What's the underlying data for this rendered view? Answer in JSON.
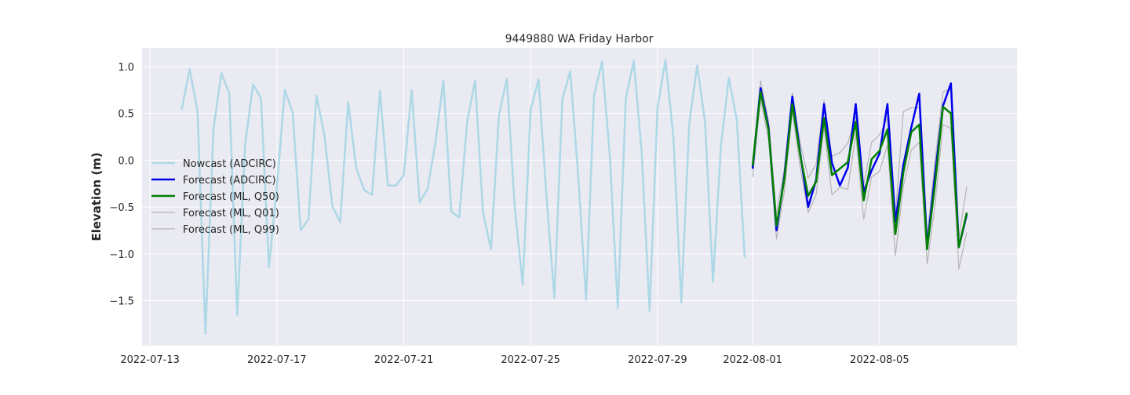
{
  "chart_data": {
    "type": "line",
    "title": "9449880 WA Friday Harbor",
    "xlabel": "",
    "ylabel": "Elevation (m)",
    "xlim": [
      "2022-07-12T18:00",
      "2022-08-09T08:00"
    ],
    "ylim": [
      -1.98,
      1.2
    ],
    "x_ticks": [
      "2022-07-13",
      "2022-07-17",
      "2022-07-21",
      "2022-07-25",
      "2022-07-29",
      "2022-08-01",
      "2022-08-05"
    ],
    "y_ticks": [
      1.0,
      0.5,
      0.0,
      -0.5,
      -1.0,
      -1.5
    ],
    "y_tick_labels": [
      "1.0",
      "0.5",
      "0.0",
      "−0.5",
      "−1.0",
      "−1.5"
    ],
    "grid": true,
    "legend_position": "center-left",
    "series": [
      {
        "name": "Nowcast (ADCIRC)",
        "color": "#add8e6",
        "points": [
          [
            "2022-07-14T00:00",
            0.54
          ],
          [
            "2022-07-14T06:00",
            0.97
          ],
          [
            "2022-07-14T12:00",
            0.53
          ],
          [
            "2022-07-14T18:00",
            -1.85
          ],
          [
            "2022-07-15T00:00",
            0.33
          ],
          [
            "2022-07-15T06:00",
            0.93
          ],
          [
            "2022-07-15T12:00",
            0.71
          ],
          [
            "2022-07-15T18:00",
            -1.65
          ],
          [
            "2022-07-16T00:00",
            0.17
          ],
          [
            "2022-07-16T06:00",
            0.81
          ],
          [
            "2022-07-16T12:00",
            0.66
          ],
          [
            "2022-07-16T18:00",
            -1.14
          ],
          [
            "2022-07-17T00:00",
            -0.3
          ],
          [
            "2022-07-17T06:00",
            0.75
          ],
          [
            "2022-07-17T12:00",
            0.51
          ],
          [
            "2022-07-17T18:00",
            -0.75
          ],
          [
            "2022-07-18T00:00",
            -0.63
          ],
          [
            "2022-07-18T06:00",
            0.69
          ],
          [
            "2022-07-18T12:00",
            0.27
          ],
          [
            "2022-07-18T18:00",
            -0.49
          ],
          [
            "2022-07-19T00:00",
            -0.66
          ],
          [
            "2022-07-19T06:00",
            0.62
          ],
          [
            "2022-07-19T12:00",
            -0.08
          ],
          [
            "2022-07-19T18:00",
            -0.32
          ],
          [
            "2022-07-20T00:00",
            -0.37
          ],
          [
            "2022-07-20T06:00",
            0.74
          ],
          [
            "2022-07-20T12:00",
            -0.27
          ],
          [
            "2022-07-20T18:00",
            -0.27
          ],
          [
            "2022-07-21T00:00",
            -0.16
          ],
          [
            "2022-07-21T06:00",
            0.75
          ],
          [
            "2022-07-21T12:00",
            -0.45
          ],
          [
            "2022-07-21T18:00",
            -0.31
          ],
          [
            "2022-07-22T00:00",
            0.19
          ],
          [
            "2022-07-22T06:00",
            0.85
          ],
          [
            "2022-07-22T12:00",
            -0.55
          ],
          [
            "2022-07-22T18:00",
            -0.61
          ],
          [
            "2022-07-23T00:00",
            0.41
          ],
          [
            "2022-07-23T06:00",
            0.85
          ],
          [
            "2022-07-23T12:00",
            -0.56
          ],
          [
            "2022-07-23T18:00",
            -0.95
          ],
          [
            "2022-07-24T00:00",
            0.48
          ],
          [
            "2022-07-24T06:00",
            0.87
          ],
          [
            "2022-07-24T12:00",
            -0.51
          ],
          [
            "2022-07-24T18:00",
            -1.33
          ],
          [
            "2022-07-25T00:00",
            0.54
          ],
          [
            "2022-07-25T06:00",
            0.86
          ],
          [
            "2022-07-25T12:00",
            -0.39
          ],
          [
            "2022-07-25T18:00",
            -1.47
          ],
          [
            "2022-07-26T00:00",
            0.65
          ],
          [
            "2022-07-26T06:00",
            0.95
          ],
          [
            "2022-07-26T12:00",
            -0.17
          ],
          [
            "2022-07-26T18:00",
            -1.49
          ],
          [
            "2022-07-27T00:00",
            0.69
          ],
          [
            "2022-07-27T06:00",
            1.05
          ],
          [
            "2022-07-27T12:00",
            0.04
          ],
          [
            "2022-07-27T18:00",
            -1.58
          ],
          [
            "2022-07-28T00:00",
            0.66
          ],
          [
            "2022-07-28T06:00",
            1.06
          ],
          [
            "2022-07-28T12:00",
            0.09
          ],
          [
            "2022-07-28T18:00",
            -1.61
          ],
          [
            "2022-07-29T00:00",
            0.56
          ],
          [
            "2022-07-29T06:00",
            1.07
          ],
          [
            "2022-07-29T12:00",
            0.25
          ],
          [
            "2022-07-29T18:00",
            -1.52
          ],
          [
            "2022-07-30T00:00",
            0.39
          ],
          [
            "2022-07-30T06:00",
            1.01
          ],
          [
            "2022-07-30T12:00",
            0.41
          ],
          [
            "2022-07-30T18:00",
            -1.3
          ],
          [
            "2022-07-31T00:00",
            0.15
          ],
          [
            "2022-07-31T06:00",
            0.88
          ],
          [
            "2022-07-31T12:00",
            0.43
          ],
          [
            "2022-07-31T18:00",
            -1.04
          ]
        ]
      },
      {
        "name": "Forecast (ADCIRC)",
        "color": "#0000ee",
        "points": [
          [
            "2022-08-01T00:00",
            -0.09
          ],
          [
            "2022-08-01T06:00",
            0.77
          ],
          [
            "2022-08-01T12:00",
            0.35
          ],
          [
            "2022-08-01T18:00",
            -0.75
          ],
          [
            "2022-08-02T00:00",
            -0.17
          ],
          [
            "2022-08-02T06:00",
            0.68
          ],
          [
            "2022-08-02T12:00",
            0.07
          ],
          [
            "2022-08-02T18:00",
            -0.5
          ],
          [
            "2022-08-03T00:00",
            -0.21
          ],
          [
            "2022-08-03T06:00",
            0.6
          ],
          [
            "2022-08-03T12:00",
            -0.03
          ],
          [
            "2022-08-03T18:00",
            -0.27
          ],
          [
            "2022-08-04T00:00",
            -0.08
          ],
          [
            "2022-08-04T06:00",
            0.6
          ],
          [
            "2022-08-04T12:00",
            -0.34
          ],
          [
            "2022-08-04T18:00",
            -0.11
          ],
          [
            "2022-08-05T00:00",
            0.07
          ],
          [
            "2022-08-05T06:00",
            0.6
          ],
          [
            "2022-08-05T12:00",
            -0.66
          ],
          [
            "2022-08-05T18:00",
            -0.05
          ],
          [
            "2022-08-06T00:00",
            0.35
          ],
          [
            "2022-08-06T06:00",
            0.71
          ],
          [
            "2022-08-06T12:00",
            -0.93
          ],
          [
            "2022-08-06T18:00",
            -0.15
          ],
          [
            "2022-08-07T00:00",
            0.58
          ],
          [
            "2022-08-07T06:00",
            0.82
          ],
          [
            "2022-08-07T12:00",
            -0.93
          ],
          [
            "2022-08-07T18:00",
            -0.58
          ]
        ]
      },
      {
        "name": "Forecast (ML, Q50)",
        "color": "#008000",
        "points": [
          [
            "2022-08-01T00:00",
            -0.06
          ],
          [
            "2022-08-01T06:00",
            0.73
          ],
          [
            "2022-08-01T12:00",
            0.32
          ],
          [
            "2022-08-01T18:00",
            -0.7
          ],
          [
            "2022-08-02T00:00",
            -0.2
          ],
          [
            "2022-08-02T06:00",
            0.6
          ],
          [
            "2022-08-02T12:00",
            0.05
          ],
          [
            "2022-08-02T18:00",
            -0.38
          ],
          [
            "2022-08-03T00:00",
            -0.23
          ],
          [
            "2022-08-03T06:00",
            0.45
          ],
          [
            "2022-08-03T12:00",
            -0.16
          ],
          [
            "2022-08-03T18:00",
            -0.09
          ],
          [
            "2022-08-04T00:00",
            -0.02
          ],
          [
            "2022-08-04T06:00",
            0.41
          ],
          [
            "2022-08-04T12:00",
            -0.43
          ],
          [
            "2022-08-04T18:00",
            0.01
          ],
          [
            "2022-08-05T00:00",
            0.1
          ],
          [
            "2022-08-05T06:00",
            0.33
          ],
          [
            "2022-08-05T12:00",
            -0.79
          ],
          [
            "2022-08-05T18:00",
            -0.13
          ],
          [
            "2022-08-06T00:00",
            0.3
          ],
          [
            "2022-08-06T06:00",
            0.38
          ],
          [
            "2022-08-06T12:00",
            -0.95
          ],
          [
            "2022-08-06T18:00",
            -0.25
          ],
          [
            "2022-08-07T00:00",
            0.57
          ],
          [
            "2022-08-07T06:00",
            0.5
          ],
          [
            "2022-08-07T12:00",
            -0.93
          ],
          [
            "2022-08-07T18:00",
            -0.56
          ]
        ]
      },
      {
        "name": "Forecast (ML, Q01)",
        "color": "#b4b4b4",
        "points": [
          [
            "2022-08-01T00:00",
            -0.18
          ],
          [
            "2022-08-01T06:00",
            0.65
          ],
          [
            "2022-08-01T12:00",
            0.22
          ],
          [
            "2022-08-01T18:00",
            -0.84
          ],
          [
            "2022-08-02T00:00",
            -0.33
          ],
          [
            "2022-08-02T06:00",
            0.52
          ],
          [
            "2022-08-02T12:00",
            -0.08
          ],
          [
            "2022-08-02T18:00",
            -0.56
          ],
          [
            "2022-08-03T00:00",
            -0.37
          ],
          [
            "2022-08-03T06:00",
            0.35
          ],
          [
            "2022-08-03T12:00",
            -0.37
          ],
          [
            "2022-08-03T18:00",
            -0.29
          ],
          [
            "2022-08-04T00:00",
            -0.31
          ],
          [
            "2022-08-04T06:00",
            0.28
          ],
          [
            "2022-08-04T12:00",
            -0.63
          ],
          [
            "2022-08-04T18:00",
            -0.18
          ],
          [
            "2022-08-05T00:00",
            -0.12
          ],
          [
            "2022-08-05T06:00",
            0.16
          ],
          [
            "2022-08-05T12:00",
            -1.02
          ],
          [
            "2022-08-05T18:00",
            -0.28
          ],
          [
            "2022-08-06T00:00",
            0.11
          ],
          [
            "2022-08-06T06:00",
            0.19
          ],
          [
            "2022-08-06T12:00",
            -1.11
          ],
          [
            "2022-08-06T18:00",
            -0.47
          ],
          [
            "2022-08-07T00:00",
            0.38
          ],
          [
            "2022-08-07T06:00",
            0.34
          ],
          [
            "2022-08-07T12:00",
            -1.16
          ],
          [
            "2022-08-07T18:00",
            -0.77
          ]
        ]
      },
      {
        "name": "Forecast (ML, Q99)",
        "color": "#b4b4b4",
        "points": [
          [
            "2022-08-01T00:00",
            0.0
          ],
          [
            "2022-08-01T06:00",
            0.85
          ],
          [
            "2022-08-01T12:00",
            0.42
          ],
          [
            "2022-08-01T18:00",
            -0.58
          ],
          [
            "2022-08-02T00:00",
            -0.08
          ],
          [
            "2022-08-02T06:00",
            0.72
          ],
          [
            "2022-08-02T12:00",
            0.18
          ],
          [
            "2022-08-02T18:00",
            -0.19
          ],
          [
            "2022-08-03T00:00",
            -0.04
          ],
          [
            "2022-08-03T06:00",
            0.64
          ],
          [
            "2022-08-03T12:00",
            0.04
          ],
          [
            "2022-08-03T18:00",
            0.08
          ],
          [
            "2022-08-04T00:00",
            0.18
          ],
          [
            "2022-08-04T06:00",
            0.47
          ],
          [
            "2022-08-04T12:00",
            -0.27
          ],
          [
            "2022-08-04T18:00",
            0.19
          ],
          [
            "2022-08-05T00:00",
            0.27
          ],
          [
            "2022-08-05T06:00",
            0.45
          ],
          [
            "2022-08-05T12:00",
            -0.59
          ],
          [
            "2022-08-05T18:00",
            0.52
          ],
          [
            "2022-08-06T00:00",
            0.56
          ],
          [
            "2022-08-06T06:00",
            0.56
          ],
          [
            "2022-08-06T12:00",
            -0.82
          ],
          [
            "2022-08-06T18:00",
            0.0
          ],
          [
            "2022-08-07T00:00",
            0.73
          ],
          [
            "2022-08-07T06:00",
            0.76
          ],
          [
            "2022-08-07T12:00",
            -0.83
          ],
          [
            "2022-08-07T18:00",
            -0.28
          ]
        ]
      }
    ]
  }
}
